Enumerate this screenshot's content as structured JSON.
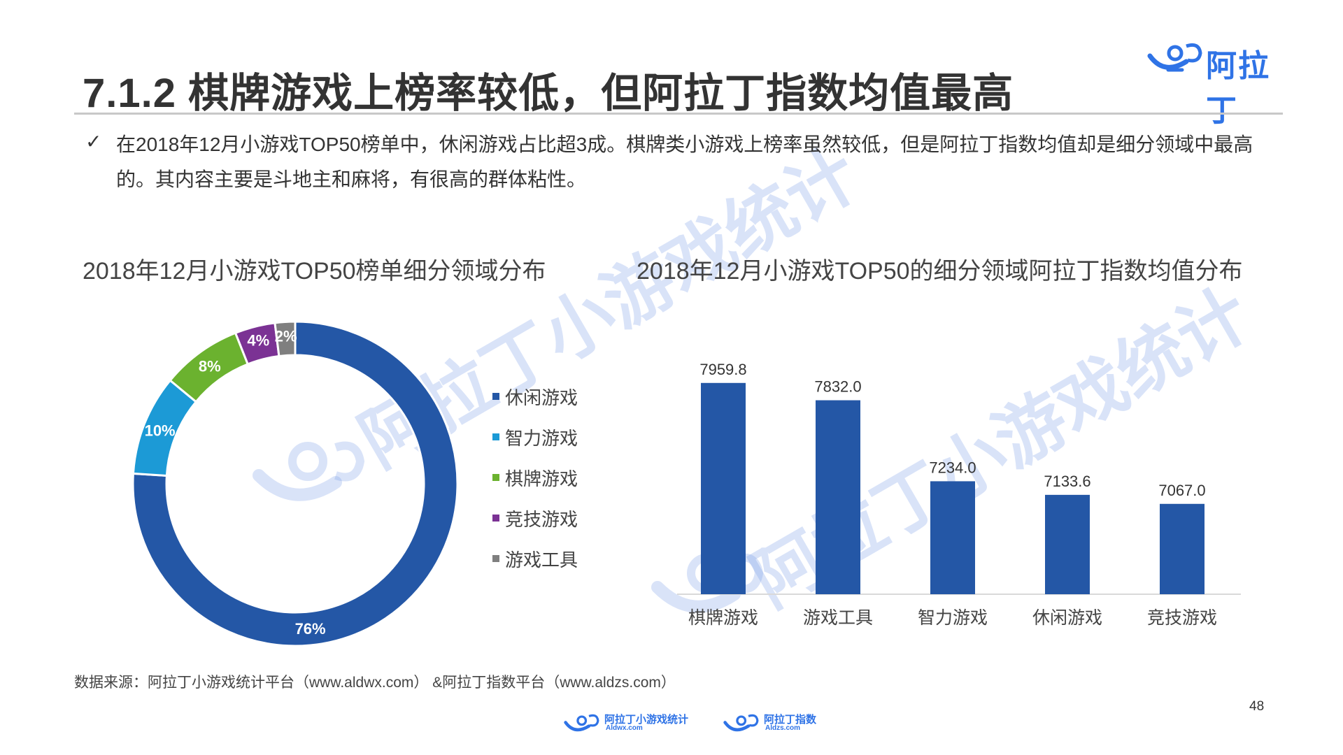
{
  "header": {
    "logo_text": "阿拉丁",
    "title": "7.1.2 棋牌游戏上榜率较低，但阿拉丁指数均值最高"
  },
  "summary": {
    "bullet": "✓",
    "text": "在2018年12月小游戏TOP50榜单中，休闲游戏占比超3成。棋牌类小游戏上榜率虽然较低，但是阿拉丁指数均值却是细分领域中最高的。其内容主要是斗地主和麻将，有很高的群体粘性。"
  },
  "chart_data": [
    {
      "type": "pie",
      "title": "2018年12月小游戏TOP50榜单细分领域分布",
      "categories": [
        "休闲游戏",
        "智力游戏",
        "棋牌游戏",
        "竞技游戏",
        "游戏工具"
      ],
      "values": [
        76,
        10,
        8,
        4,
        2
      ],
      "labels": [
        "76%",
        "10%",
        "8%",
        "4%",
        "2%"
      ],
      "colors": [
        "#2457a6",
        "#1c9ad6",
        "#6bb22f",
        "#7b3294",
        "#7f7f7f"
      ],
      "donut": true,
      "legend_position": "right"
    },
    {
      "type": "bar",
      "title": "2018年12月小游戏TOP50的细分领域阿拉丁指数均值分布",
      "categories": [
        "棋牌游戏",
        "游戏工具",
        "智力游戏",
        "休闲游戏",
        "竞技游戏"
      ],
      "values": [
        7959.8,
        7832.0,
        7234.0,
        7133.6,
        7067.0
      ],
      "labels": [
        "7959.8",
        "7832.0",
        "7234.0",
        "7133.6",
        "7067.0"
      ],
      "color": "#2457a6",
      "grid": false
    }
  ],
  "watermark": {
    "text": "阿拉丁小游戏统计"
  },
  "footer": {
    "source": "数据来源：阿拉丁小游戏统计平台（www.aldwx.com） &阿拉丁指数平台（www.aldzs.com）",
    "page_number": "48",
    "logos": [
      {
        "name": "阿拉丁小游戏统计",
        "url": "Aldwx.com"
      },
      {
        "name": "阿拉丁指数",
        "url": "Aldzs.com"
      }
    ]
  }
}
